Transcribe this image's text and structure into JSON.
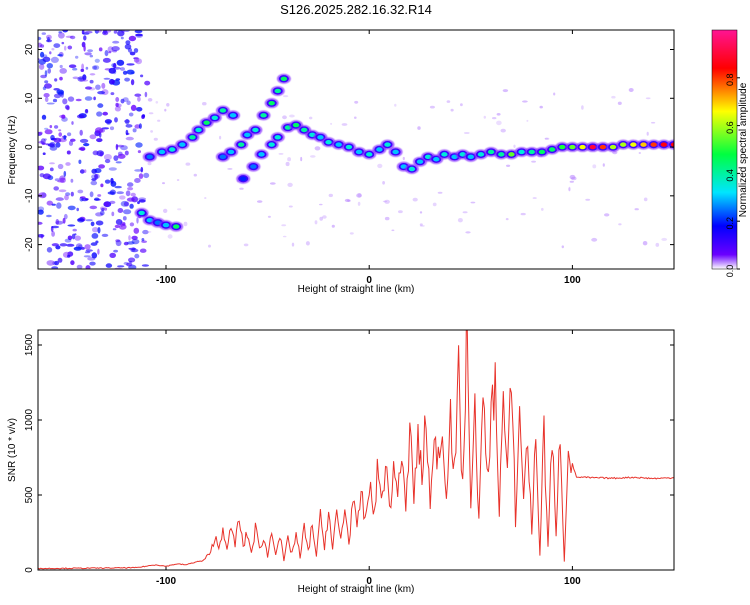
{
  "title": "S126.2025.282.16.32.R14",
  "colors": {
    "snr_line": "#e8332b",
    "frame": "#000000",
    "background": "#ffffff"
  },
  "chart_data": [
    {
      "type": "heatmap",
      "xlabel": "Height of straight line (km)",
      "ylabel": "Frequency (Hz)",
      "xlim": [
        -163,
        150
      ],
      "ylim": [
        -25,
        24
      ],
      "x_ticks": [
        -100,
        0,
        100
      ],
      "x_tick_labels": [
        "-100",
        "0",
        "100"
      ],
      "y_ticks": [
        -20,
        -10,
        0,
        10,
        20
      ],
      "y_tick_labels": [
        "-20",
        "-10",
        "0",
        "10",
        "20"
      ],
      "noise_region_x": [
        -163,
        -115
      ],
      "ridge": [
        {
          "x": -112,
          "y": -13.5,
          "amp": 0.35
        },
        {
          "x": -108,
          "y": -15,
          "amp": 0.3
        },
        {
          "x": -104,
          "y": -15.5,
          "amp": 0.25
        },
        {
          "x": -100,
          "y": -16,
          "amp": 0.3
        },
        {
          "x": -95,
          "y": -16.3,
          "amp": 0.45
        },
        {
          "x": -108,
          "y": -2,
          "amp": 0.25
        },
        {
          "x": -102,
          "y": -1,
          "amp": 0.3
        },
        {
          "x": -97,
          "y": -0.5,
          "amp": 0.35
        },
        {
          "x": -92,
          "y": 0.5,
          "amp": 0.3
        },
        {
          "x": -87,
          "y": 2,
          "amp": 0.4
        },
        {
          "x": -84,
          "y": 3.5,
          "amp": 0.35
        },
        {
          "x": -80,
          "y": 5,
          "amp": 0.45
        },
        {
          "x": -76,
          "y": 6,
          "amp": 0.35
        },
        {
          "x": -72,
          "y": 7.5,
          "amp": 0.4
        },
        {
          "x": -67,
          "y": 6.5,
          "amp": 0.3
        },
        {
          "x": -72,
          "y": -2,
          "amp": 0.25
        },
        {
          "x": -68,
          "y": -1,
          "amp": 0.3
        },
        {
          "x": -63,
          "y": 0.5,
          "amp": 0.4
        },
        {
          "x": -60,
          "y": 2.5,
          "amp": 0.3
        },
        {
          "x": -56,
          "y": 3.5,
          "amp": 0.35
        },
        {
          "x": -52,
          "y": 6.5,
          "amp": 0.4
        },
        {
          "x": -48,
          "y": 9,
          "amp": 0.45
        },
        {
          "x": -45,
          "y": 11.5,
          "amp": 0.4
        },
        {
          "x": -42,
          "y": 14,
          "amp": 0.45
        },
        {
          "x": -62,
          "y": -6.5,
          "amp": 0.2
        },
        {
          "x": -57,
          "y": -4,
          "amp": 0.25
        },
        {
          "x": -53,
          "y": -1.5,
          "amp": 0.3
        },
        {
          "x": -48,
          "y": 0.5,
          "amp": 0.35
        },
        {
          "x": -45,
          "y": 2,
          "amp": 0.35
        },
        {
          "x": -40,
          "y": 4,
          "amp": 0.4
        },
        {
          "x": -36,
          "y": 4.5,
          "amp": 0.45
        },
        {
          "x": -32,
          "y": 3.5,
          "amp": 0.4
        },
        {
          "x": -28,
          "y": 2.5,
          "amp": 0.35
        },
        {
          "x": -24,
          "y": 2,
          "amp": 0.3
        },
        {
          "x": -20,
          "y": 1,
          "amp": 0.35
        },
        {
          "x": -15,
          "y": 0.5,
          "amp": 0.3
        },
        {
          "x": -10,
          "y": 0,
          "amp": 0.35
        },
        {
          "x": -5,
          "y": -1,
          "amp": 0.3
        },
        {
          "x": 0,
          "y": -1.5,
          "amp": 0.35
        },
        {
          "x": 5,
          "y": -0.5,
          "amp": 0.3
        },
        {
          "x": 9,
          "y": 0.5,
          "amp": 0.35
        },
        {
          "x": 13,
          "y": -1,
          "amp": 0.3
        },
        {
          "x": 17,
          "y": -4,
          "amp": 0.3
        },
        {
          "x": 21,
          "y": -4.5,
          "amp": 0.35
        },
        {
          "x": 25,
          "y": -3,
          "amp": 0.3
        },
        {
          "x": 29,
          "y": -2,
          "amp": 0.35
        },
        {
          "x": 33,
          "y": -2.5,
          "amp": 0.3
        },
        {
          "x": 37,
          "y": -1.5,
          "amp": 0.35
        },
        {
          "x": 42,
          "y": -2,
          "amp": 0.3
        },
        {
          "x": 46,
          "y": -1.5,
          "amp": 0.35
        },
        {
          "x": 50,
          "y": -2,
          "amp": 0.3
        },
        {
          "x": 55,
          "y": -1.5,
          "amp": 0.35
        },
        {
          "x": 60,
          "y": -1,
          "amp": 0.4
        },
        {
          "x": 65,
          "y": -1.5,
          "amp": 0.4
        },
        {
          "x": 70,
          "y": -1.5,
          "amp": 0.55
        },
        {
          "x": 75,
          "y": -1,
          "amp": 0.35
        },
        {
          "x": 80,
          "y": -1,
          "amp": 0.4
        },
        {
          "x": 85,
          "y": -1,
          "amp": 0.45
        },
        {
          "x": 90,
          "y": -0.5,
          "amp": 0.45
        },
        {
          "x": 95,
          "y": 0,
          "amp": 0.5
        },
        {
          "x": 100,
          "y": 0,
          "amp": 0.55
        },
        {
          "x": 105,
          "y": 0,
          "amp": 0.65
        },
        {
          "x": 110,
          "y": 0,
          "amp": 0.9
        },
        {
          "x": 115,
          "y": 0,
          "amp": 0.8
        },
        {
          "x": 120,
          "y": 0,
          "amp": 0.6
        },
        {
          "x": 125,
          "y": 0.5,
          "amp": 0.6
        },
        {
          "x": 130,
          "y": 0.5,
          "amp": 0.65
        },
        {
          "x": 135,
          "y": 0.5,
          "amp": 0.7
        },
        {
          "x": 140,
          "y": 0.5,
          "amp": 0.8
        },
        {
          "x": 145,
          "y": 0.5,
          "amp": 0.85
        },
        {
          "x": 150,
          "y": 0.5,
          "amp": 0.85
        }
      ]
    },
    {
      "type": "colorbar",
      "label": "Normalized spectral amplitude",
      "range": [
        0,
        1
      ],
      "ticks": [
        0.0,
        0.2,
        0.4,
        0.6,
        0.8
      ],
      "tick_labels": [
        "0.0",
        "0.2",
        "0.4",
        "0.6",
        "0.8"
      ],
      "colormap": [
        "#ffffff",
        "#6a00ff",
        "#0000ff",
        "#00e5ff",
        "#00ff40",
        "#ffff00",
        "#ff0000",
        "#ff1493"
      ]
    },
    {
      "type": "line",
      "xlabel": "Height of straight line (km)",
      "ylabel": "SNR (10 * v/v)",
      "xlim": [
        -163,
        150
      ],
      "ylim": [
        0,
        1600
      ],
      "x_ticks": [
        -100,
        0,
        100
      ],
      "x_tick_labels": [
        "-100",
        "0",
        "100"
      ],
      "y_ticks": [
        0,
        500,
        1000,
        1500
      ],
      "y_tick_labels": [
        "0",
        "500",
        "1000",
        "1500"
      ],
      "series": [
        {
          "name": "SNR",
          "x": [
            -163,
            -140,
            -115,
            -105,
            -100,
            -95,
            -90,
            -85,
            -82,
            -78,
            -76,
            -74,
            -72,
            -70,
            -68,
            -66,
            -64,
            -62,
            -60,
            -58,
            -56,
            -54,
            -52,
            -50,
            -48,
            -46,
            -44,
            -42,
            -40,
            -38,
            -36,
            -34,
            -32,
            -30,
            -28,
            -26,
            -24,
            -22,
            -20,
            -18,
            -16,
            -14,
            -12,
            -10,
            -8,
            -6,
            -4,
            -2,
            0,
            2,
            4,
            6,
            8,
            10,
            12,
            14,
            16,
            18,
            20,
            22,
            24,
            26,
            28,
            30,
            32,
            34,
            36,
            38,
            40,
            42,
            44,
            46,
            48,
            50,
            52,
            54,
            56,
            58,
            60,
            62,
            64,
            66,
            68,
            70,
            72,
            74,
            76,
            78,
            80,
            82,
            84,
            86,
            88,
            90,
            92,
            94,
            96,
            98,
            100,
            102,
            110,
            120,
            130,
            140,
            150
          ],
          "values": [
            10,
            12,
            15,
            35,
            25,
            40,
            35,
            55,
            60,
            110,
            230,
            140,
            300,
            120,
            280,
            180,
            340,
            150,
            250,
            110,
            280,
            140,
            220,
            90,
            260,
            120,
            230,
            60,
            200,
            110,
            240,
            80,
            280,
            120,
            310,
            90,
            350,
            160,
            400,
            130,
            380,
            200,
            420,
            180,
            480,
            250,
            520,
            320,
            560,
            380,
            640,
            470,
            700,
            430,
            620,
            560,
            760,
            380,
            920,
            500,
            860,
            620,
            1010,
            450,
            780,
            820,
            880,
            560,
            1040,
            640,
            1280,
            530,
            1600,
            480,
            1020,
            370,
            1080,
            640,
            990,
            1270,
            420,
            1130,
            610,
            1260,
            340,
            1020,
            520,
            860,
            260,
            880,
            110,
            920,
            160,
            900,
            200,
            960,
            50,
            880,
            700,
            620,
            615,
            612,
            618,
            610,
            615
          ]
        }
      ]
    }
  ]
}
